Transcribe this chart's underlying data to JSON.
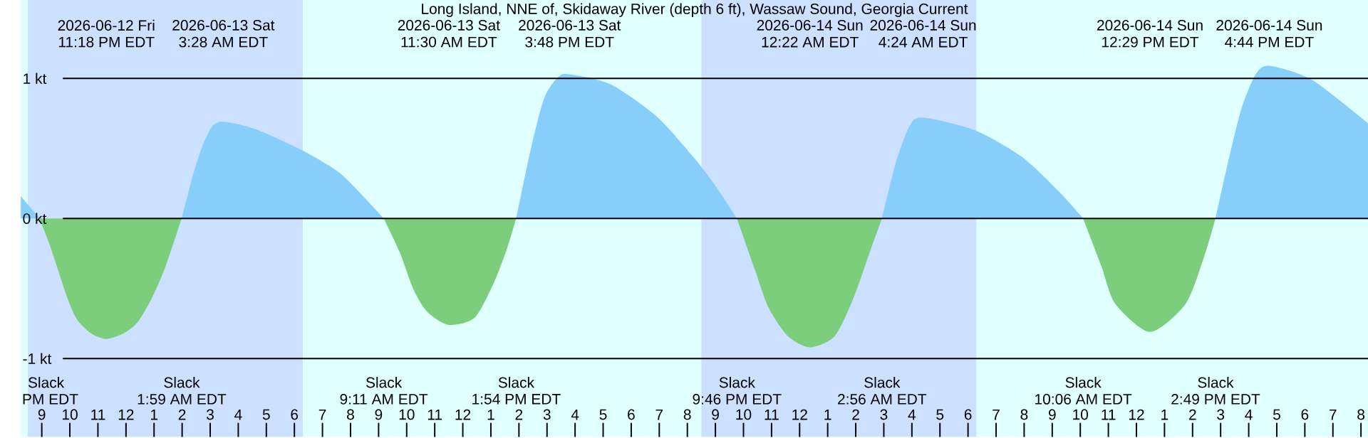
{
  "chart_data": {
    "type": "area",
    "title": "Long Island, NNE of, Skidaway River (depth 6 ft), Wassaw Sound, Georgia Current",
    "series": [
      {
        "color": "#87cefa",
        "x": [
          "2026-06-12T20:15",
          "2026-06-12T20:55",
          "2026-06-12T23:30",
          "2026-06-13T01:59",
          "2026-06-13T02:25",
          "2026-06-13T02:45",
          "2026-06-13T03:05",
          "2026-06-13T03:28",
          "2026-06-13T04:35",
          "2026-06-13T06:15",
          "2026-06-13T07:35",
          "2026-06-13T08:35",
          "2026-06-13T09:11",
          "2026-06-13T11:30",
          "2026-06-13T13:54",
          "2026-06-13T14:25",
          "2026-06-13T14:54",
          "2026-06-13T15:24",
          "2026-06-13T15:48",
          "2026-06-13T17:15",
          "2026-06-13T18:54",
          "2026-06-13T20:15",
          "2026-06-13T21:05",
          "2026-06-13T21:46",
          "2026-06-14T00:22",
          "2026-06-14T02:56",
          "2026-06-14T03:25",
          "2026-06-14T03:55",
          "2026-06-14T04:24",
          "2026-06-14T06:15",
          "2026-06-14T07:55",
          "2026-06-14T09:15",
          "2026-06-14T10:06",
          "2026-06-14T12:29",
          "2026-06-14T14:49",
          "2026-06-14T15:15",
          "2026-06-14T15:45",
          "2026-06-14T16:15",
          "2026-06-14T16:44",
          "2026-06-14T18:15",
          "2026-06-14T20:15"
        ],
        "values": [
          0.16,
          0,
          null,
          0,
          0.33,
          0.53,
          0.66,
          0.69,
          0.64,
          0.49,
          0.33,
          0.13,
          0,
          null,
          0,
          0.49,
          0.86,
          1.01,
          1.03,
          0.96,
          0.73,
          0.43,
          0.21,
          0,
          null,
          0,
          0.39,
          0.66,
          0.72,
          0.63,
          0.44,
          0.19,
          0,
          null,
          0,
          0.39,
          0.79,
          1.03,
          1.09,
          0.99,
          0.68
        ]
      },
      {
        "color": "#7ccd7c",
        "x": [
          "2026-06-12T20:55",
          "2026-06-12T21:15",
          "2026-06-12T21:35",
          "2026-06-12T21:55",
          "2026-06-12T22:15",
          "2026-06-12T22:45",
          "2026-06-12T23:18",
          "2026-06-12T23:55",
          "2026-06-13T00:25",
          "2026-06-13T00:55",
          "2026-06-13T01:25",
          "2026-06-13T01:59",
          "2026-06-13T05:00",
          "2026-06-13T09:11",
          "2026-06-13T09:45",
          "2026-06-13T10:15",
          "2026-06-13T10:45",
          "2026-06-13T11:30",
          "2026-06-13T12:25",
          "2026-06-13T13:05",
          "2026-06-13T13:35",
          "2026-06-13T13:54",
          "2026-06-13T18:00",
          "2026-06-13T21:46",
          "2026-06-13T22:25",
          "2026-06-13T22:54",
          "2026-06-13T23:35",
          "2026-06-14T00:22",
          "2026-06-14T01:15",
          "2026-06-14T01:55",
          "2026-06-14T02:30",
          "2026-06-14T02:56",
          "2026-06-14T06:00",
          "2026-06-14T10:06",
          "2026-06-14T10:45",
          "2026-06-14T11:15",
          "2026-06-14T12:29",
          "2026-06-14T13:45",
          "2026-06-14T14:25",
          "2026-06-14T14:49"
        ],
        "values": [
          0,
          -0.17,
          -0.37,
          -0.57,
          -0.72,
          -0.82,
          -0.86,
          -0.82,
          -0.74,
          -0.57,
          -0.34,
          0,
          null,
          0,
          -0.24,
          -0.51,
          -0.67,
          -0.76,
          -0.71,
          -0.47,
          -0.21,
          0,
          null,
          0,
          -0.37,
          -0.64,
          -0.84,
          -0.92,
          -0.84,
          -0.57,
          -0.24,
          0,
          null,
          0,
          -0.34,
          -0.61,
          -0.81,
          -0.61,
          -0.27,
          0
        ]
      }
    ],
    "xlim": [
      "2026-06-12T20:15",
      "2026-06-14T20:15"
    ],
    "ylim": [
      -1.56,
      1.56
    ],
    "yticks": [
      {
        "value": -1,
        "label": "-1 kt"
      },
      {
        "value": 0,
        "label": "0 kt"
      },
      {
        "value": 1,
        "label": "1 kt"
      }
    ],
    "xticks": [
      {
        "value": "2026-06-12T21:00",
        "label": "9"
      },
      {
        "value": "2026-06-12T22:00",
        "label": "10"
      },
      {
        "value": "2026-06-12T23:00",
        "label": "11"
      },
      {
        "value": "2026-06-13T00:00",
        "label": "12"
      },
      {
        "value": "2026-06-13T01:00",
        "label": "1"
      },
      {
        "value": "2026-06-13T02:00",
        "label": "2"
      },
      {
        "value": "2026-06-13T03:00",
        "label": "3"
      },
      {
        "value": "2026-06-13T04:00",
        "label": "4"
      },
      {
        "value": "2026-06-13T05:00",
        "label": "5"
      },
      {
        "value": "2026-06-13T06:00",
        "label": "6"
      },
      {
        "value": "2026-06-13T07:00",
        "label": "7"
      },
      {
        "value": "2026-06-13T08:00",
        "label": "8"
      },
      {
        "value": "2026-06-13T09:00",
        "label": "9"
      },
      {
        "value": "2026-06-13T10:00",
        "label": "10"
      },
      {
        "value": "2026-06-13T11:00",
        "label": "11"
      },
      {
        "value": "2026-06-13T12:00",
        "label": "12"
      },
      {
        "value": "2026-06-13T13:00",
        "label": "1"
      },
      {
        "value": "2026-06-13T14:00",
        "label": "2"
      },
      {
        "value": "2026-06-13T15:00",
        "label": "3"
      },
      {
        "value": "2026-06-13T16:00",
        "label": "4"
      },
      {
        "value": "2026-06-13T17:00",
        "label": "5"
      },
      {
        "value": "2026-06-13T18:00",
        "label": "6"
      },
      {
        "value": "2026-06-13T19:00",
        "label": "7"
      },
      {
        "value": "2026-06-13T20:00",
        "label": "8"
      },
      {
        "value": "2026-06-13T21:00",
        "label": "9"
      },
      {
        "value": "2026-06-13T22:00",
        "label": "10"
      },
      {
        "value": "2026-06-13T23:00",
        "label": "11"
      },
      {
        "value": "2026-06-14T00:00",
        "label": "12"
      },
      {
        "value": "2026-06-14T01:00",
        "label": "1"
      },
      {
        "value": "2026-06-14T02:00",
        "label": "2"
      },
      {
        "value": "2026-06-14T03:00",
        "label": "3"
      },
      {
        "value": "2026-06-14T04:00",
        "label": "4"
      },
      {
        "value": "2026-06-14T05:00",
        "label": "5"
      },
      {
        "value": "2026-06-14T06:00",
        "label": "6"
      },
      {
        "value": "2026-06-14T07:00",
        "label": "7"
      },
      {
        "value": "2026-06-14T08:00",
        "label": "8"
      },
      {
        "value": "2026-06-14T09:00",
        "label": "9"
      },
      {
        "value": "2026-06-14T10:00",
        "label": "10"
      },
      {
        "value": "2026-06-14T11:00",
        "label": "11"
      },
      {
        "value": "2026-06-14T12:00",
        "label": "12"
      },
      {
        "value": "2026-06-14T13:00",
        "label": "1"
      },
      {
        "value": "2026-06-14T14:00",
        "label": "2"
      },
      {
        "value": "2026-06-14T15:00",
        "label": "3"
      },
      {
        "value": "2026-06-14T16:00",
        "label": "4"
      },
      {
        "value": "2026-06-14T17:00",
        "label": "5"
      },
      {
        "value": "2026-06-14T18:00",
        "label": "6"
      },
      {
        "value": "2026-06-14T19:00",
        "label": "7"
      },
      {
        "value": "2026-06-14T20:00",
        "label": "8"
      }
    ],
    "grid": "y",
    "bands": [
      {
        "axis": "x",
        "from": "2026-06-12T20:30",
        "to": "2026-06-13T06:18",
        "color": "#cce0ff"
      },
      {
        "axis": "x",
        "from": "2026-06-13T20:30",
        "to": "2026-06-14T06:18",
        "color": "#cce0ff"
      }
    ],
    "annotations": [
      "2026-06-12 Fri",
      "11:18 PM EDT",
      "2026-06-13 Sat",
      "3:28 AM EDT",
      "2026-06-13 Sat",
      "11:30 AM EDT",
      "2026-06-13 Sat",
      "3:48 PM EDT",
      "2026-06-14 Sun",
      "12:22 AM EDT",
      "2026-06-14 Sun",
      "4:24 AM EDT",
      "2026-06-14 Sun",
      "12:29 PM EDT",
      "2026-06-14 Sun",
      "4:44 PM EDT",
      "Slack",
      "PM EDT",
      "Slack",
      "1:59 AM EDT",
      "Slack",
      "9:11 AM EDT",
      "Slack",
      "1:54 PM EDT",
      "Slack",
      "9:46 PM EDT",
      "Slack",
      "2:56 AM EDT",
      "Slack",
      "10:06 AM EDT",
      "Slack",
      "2:49 PM EDT"
    ]
  }
}
